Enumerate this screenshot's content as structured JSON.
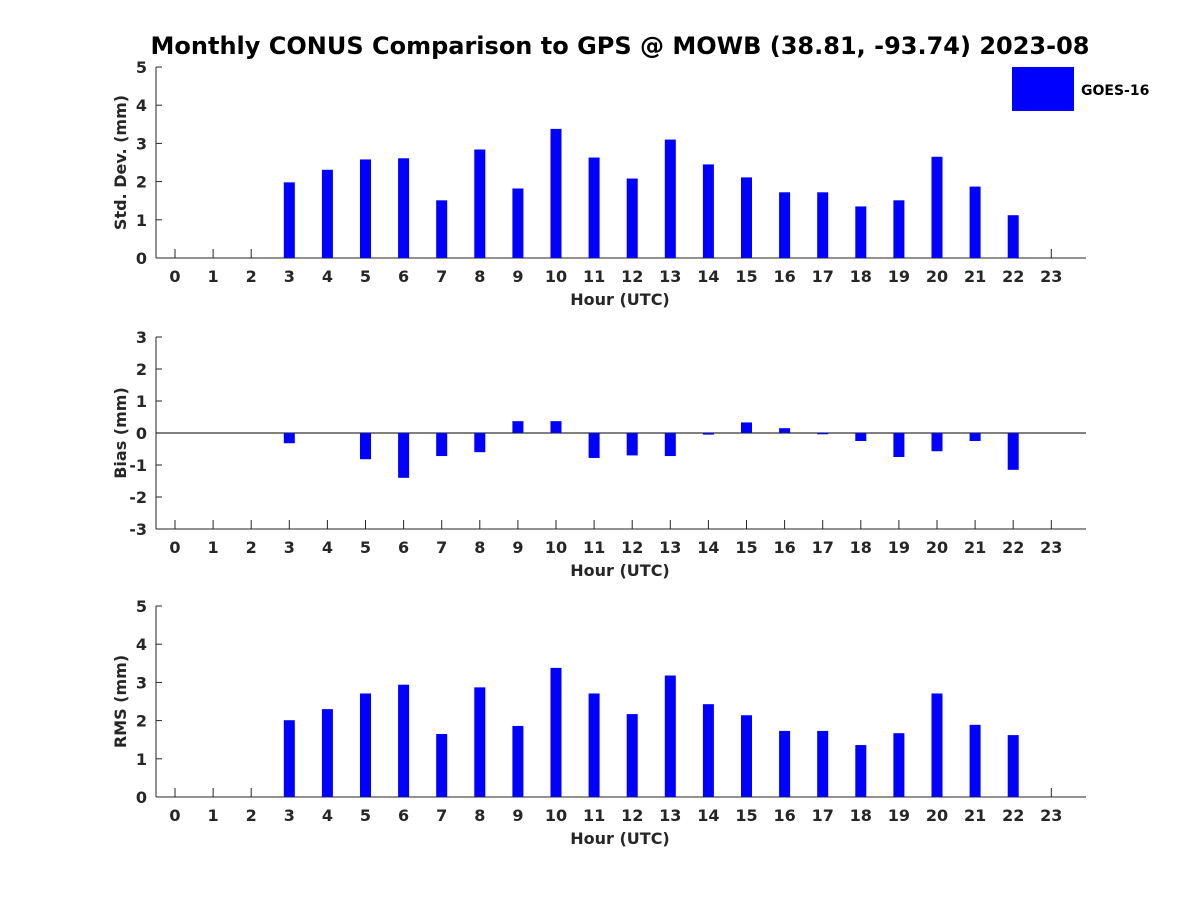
{
  "title": "Monthly CONUS Comparison to GPS @ MOWB (38.81, -93.74) 2023-08",
  "legend": {
    "label": "GOES-16",
    "color": "#0000ff",
    "placement": "top-right"
  },
  "chart_data": [
    {
      "type": "bar",
      "name": "std-dev",
      "xlabel": "Hour (UTC)",
      "ylabel": "Std. Dev. (mm)",
      "ylim": [
        0,
        5
      ],
      "yticks": [
        0,
        1,
        2,
        3,
        4,
        5
      ],
      "categories": [
        "0",
        "1",
        "2",
        "3",
        "4",
        "5",
        "6",
        "7",
        "8",
        "9",
        "10",
        "11",
        "12",
        "13",
        "14",
        "15",
        "16",
        "17",
        "18",
        "19",
        "20",
        "21",
        "22",
        "23"
      ],
      "series": [
        {
          "name": "GOES-16",
          "color": "#0000ff",
          "values": [
            null,
            null,
            null,
            1.98,
            2.31,
            2.58,
            2.61,
            1.51,
            2.84,
            1.82,
            3.38,
            2.63,
            2.08,
            3.1,
            2.45,
            2.11,
            1.72,
            1.72,
            1.35,
            1.51,
            2.65,
            1.87,
            1.12,
            null
          ]
        }
      ]
    },
    {
      "type": "bar",
      "name": "bias",
      "xlabel": "Hour (UTC)",
      "ylabel": "Bias (mm)",
      "ylim": [
        -3,
        3
      ],
      "yticks": [
        -3,
        -2,
        -1,
        0,
        1,
        2,
        3
      ],
      "categories": [
        "0",
        "1",
        "2",
        "3",
        "4",
        "5",
        "6",
        "7",
        "8",
        "9",
        "10",
        "11",
        "12",
        "13",
        "14",
        "15",
        "16",
        "17",
        "18",
        "19",
        "20",
        "21",
        "22",
        "23"
      ],
      "series": [
        {
          "name": "GOES-16",
          "color": "#0000ff",
          "values": [
            null,
            null,
            null,
            -0.32,
            null,
            -0.82,
            -1.4,
            -0.72,
            -0.6,
            0.37,
            0.37,
            -0.78,
            -0.7,
            -0.72,
            -0.05,
            0.33,
            0.15,
            -0.04,
            -0.25,
            -0.75,
            -0.57,
            -0.25,
            -1.15,
            null
          ]
        }
      ]
    },
    {
      "type": "bar",
      "name": "rms",
      "xlabel": "Hour (UTC)",
      "ylabel": "RMS (mm)",
      "ylim": [
        0,
        5
      ],
      "yticks": [
        0,
        1,
        2,
        3,
        4,
        5
      ],
      "categories": [
        "0",
        "1",
        "2",
        "3",
        "4",
        "5",
        "6",
        "7",
        "8",
        "9",
        "10",
        "11",
        "12",
        "13",
        "14",
        "15",
        "16",
        "17",
        "18",
        "19",
        "20",
        "21",
        "22",
        "23"
      ],
      "series": [
        {
          "name": "GOES-16",
          "color": "#0000ff",
          "values": [
            null,
            null,
            null,
            2.01,
            2.3,
            2.71,
            2.94,
            1.65,
            2.87,
            1.86,
            3.38,
            2.71,
            2.17,
            3.18,
            2.43,
            2.14,
            1.73,
            1.73,
            1.36,
            1.67,
            2.71,
            1.89,
            1.62,
            null
          ]
        }
      ]
    }
  ]
}
